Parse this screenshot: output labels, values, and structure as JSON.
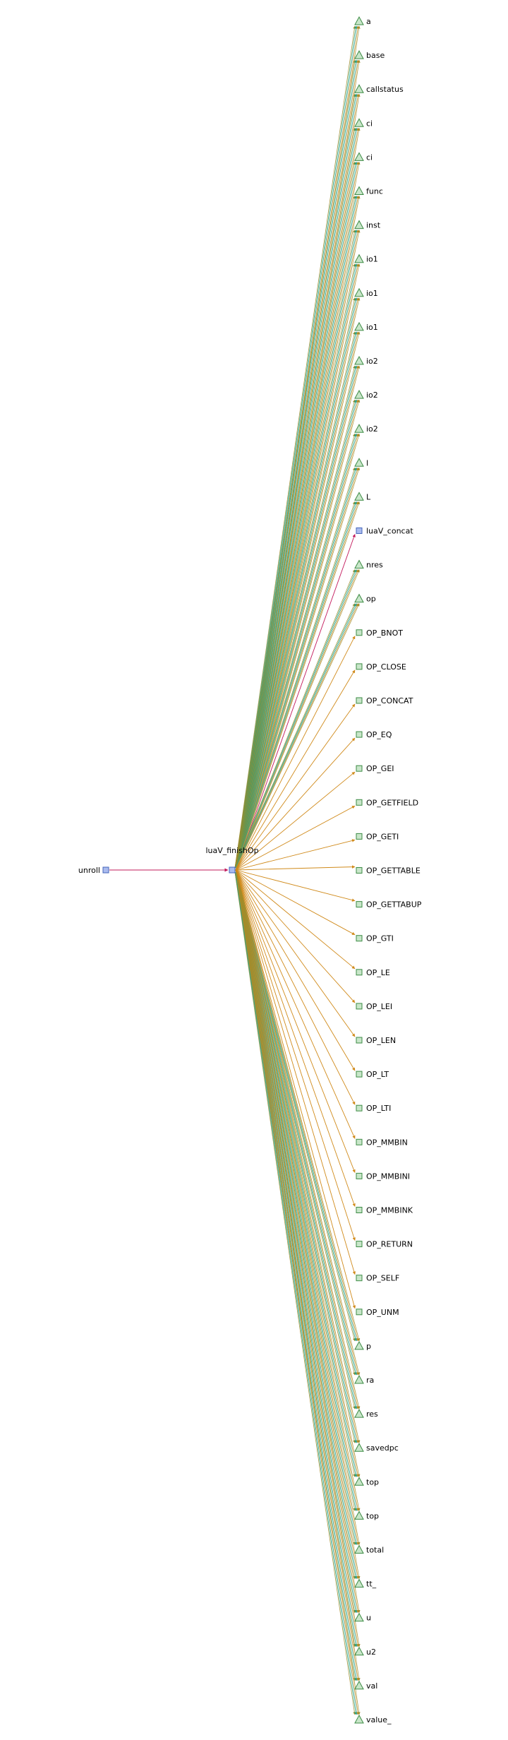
{
  "graph": {
    "source": {
      "label": "unroll",
      "shape": "square"
    },
    "center": {
      "label": "luaV_finishOp",
      "shape": "square"
    },
    "targets": [
      {
        "label": "a",
        "shape": "triangle",
        "edge": "mix"
      },
      {
        "label": "base",
        "shape": "triangle",
        "edge": "mix"
      },
      {
        "label": "callstatus",
        "shape": "triangle",
        "edge": "mix"
      },
      {
        "label": "ci",
        "shape": "triangle",
        "edge": "mix"
      },
      {
        "label": "ci",
        "shape": "triangle",
        "edge": "mix"
      },
      {
        "label": "func",
        "shape": "triangle",
        "edge": "mix"
      },
      {
        "label": "inst",
        "shape": "triangle",
        "edge": "mix"
      },
      {
        "label": "io1",
        "shape": "triangle",
        "edge": "mix"
      },
      {
        "label": "io1",
        "shape": "triangle",
        "edge": "mix"
      },
      {
        "label": "io1",
        "shape": "triangle",
        "edge": "mix"
      },
      {
        "label": "io2",
        "shape": "triangle",
        "edge": "mix"
      },
      {
        "label": "io2",
        "shape": "triangle",
        "edge": "mix"
      },
      {
        "label": "io2",
        "shape": "triangle",
        "edge": "mix"
      },
      {
        "label": "l",
        "shape": "triangle",
        "edge": "mix"
      },
      {
        "label": "L",
        "shape": "triangle",
        "edge": "mix"
      },
      {
        "label": "luaV_concat",
        "shape": "square-blue",
        "edge": "call"
      },
      {
        "label": "nres",
        "shape": "triangle",
        "edge": "mix"
      },
      {
        "label": "op",
        "shape": "triangle",
        "edge": "mix"
      },
      {
        "label": "OP_BNOT",
        "shape": "square",
        "edge": "orange"
      },
      {
        "label": "OP_CLOSE",
        "shape": "square",
        "edge": "orange"
      },
      {
        "label": "OP_CONCAT",
        "shape": "square",
        "edge": "orange"
      },
      {
        "label": "OP_EQ",
        "shape": "square",
        "edge": "orange"
      },
      {
        "label": "OP_GEI",
        "shape": "square",
        "edge": "orange"
      },
      {
        "label": "OP_GETFIELD",
        "shape": "square",
        "edge": "orange"
      },
      {
        "label": "OP_GETI",
        "shape": "square",
        "edge": "orange"
      },
      {
        "label": "OP_GETTABLE",
        "shape": "square",
        "edge": "orange"
      },
      {
        "label": "OP_GETTABUP",
        "shape": "square",
        "edge": "orange"
      },
      {
        "label": "OP_GTI",
        "shape": "square",
        "edge": "orange"
      },
      {
        "label": "OP_LE",
        "shape": "square",
        "edge": "orange"
      },
      {
        "label": "OP_LEI",
        "shape": "square",
        "edge": "orange"
      },
      {
        "label": "OP_LEN",
        "shape": "square",
        "edge": "orange"
      },
      {
        "label": "OP_LT",
        "shape": "square",
        "edge": "orange"
      },
      {
        "label": "OP_LTI",
        "shape": "square",
        "edge": "orange"
      },
      {
        "label": "OP_MMBIN",
        "shape": "square",
        "edge": "orange"
      },
      {
        "label": "OP_MMBINI",
        "shape": "square",
        "edge": "orange"
      },
      {
        "label": "OP_MMBINK",
        "shape": "square",
        "edge": "orange"
      },
      {
        "label": "OP_RETURN",
        "shape": "square",
        "edge": "orange"
      },
      {
        "label": "OP_SELF",
        "shape": "square",
        "edge": "orange"
      },
      {
        "label": "OP_UNM",
        "shape": "square",
        "edge": "orange"
      },
      {
        "label": "p",
        "shape": "triangle",
        "edge": "mix"
      },
      {
        "label": "ra",
        "shape": "triangle",
        "edge": "mix"
      },
      {
        "label": "res",
        "shape": "triangle",
        "edge": "mix"
      },
      {
        "label": "savedpc",
        "shape": "triangle",
        "edge": "mix"
      },
      {
        "label": "top",
        "shape": "triangle",
        "edge": "mix"
      },
      {
        "label": "top",
        "shape": "triangle",
        "edge": "mix"
      },
      {
        "label": "total",
        "shape": "triangle",
        "edge": "mix"
      },
      {
        "label": "tt_",
        "shape": "triangle",
        "edge": "mix"
      },
      {
        "label": "u",
        "shape": "triangle",
        "edge": "mix"
      },
      {
        "label": "u2",
        "shape": "triangle",
        "edge": "mix"
      },
      {
        "label": "val",
        "shape": "triangle",
        "edge": "mix"
      },
      {
        "label": "value_",
        "shape": "triangle",
        "edge": "mix"
      }
    ]
  },
  "colors": {
    "call_edge": "#c2185b",
    "orange_edge": "#d08a1a",
    "olive_edge": "#a08c2a",
    "green_edge": "#2e9e6e",
    "teal_edge": "#2aa79b",
    "function_fill": "#aabbee",
    "function_stroke": "#4466bb",
    "leaf_fill": "#c8e6c9",
    "leaf_stroke": "#3d8b45",
    "triangle_fill": "#c8e6c9",
    "triangle_stroke": "#3d8b45"
  }
}
